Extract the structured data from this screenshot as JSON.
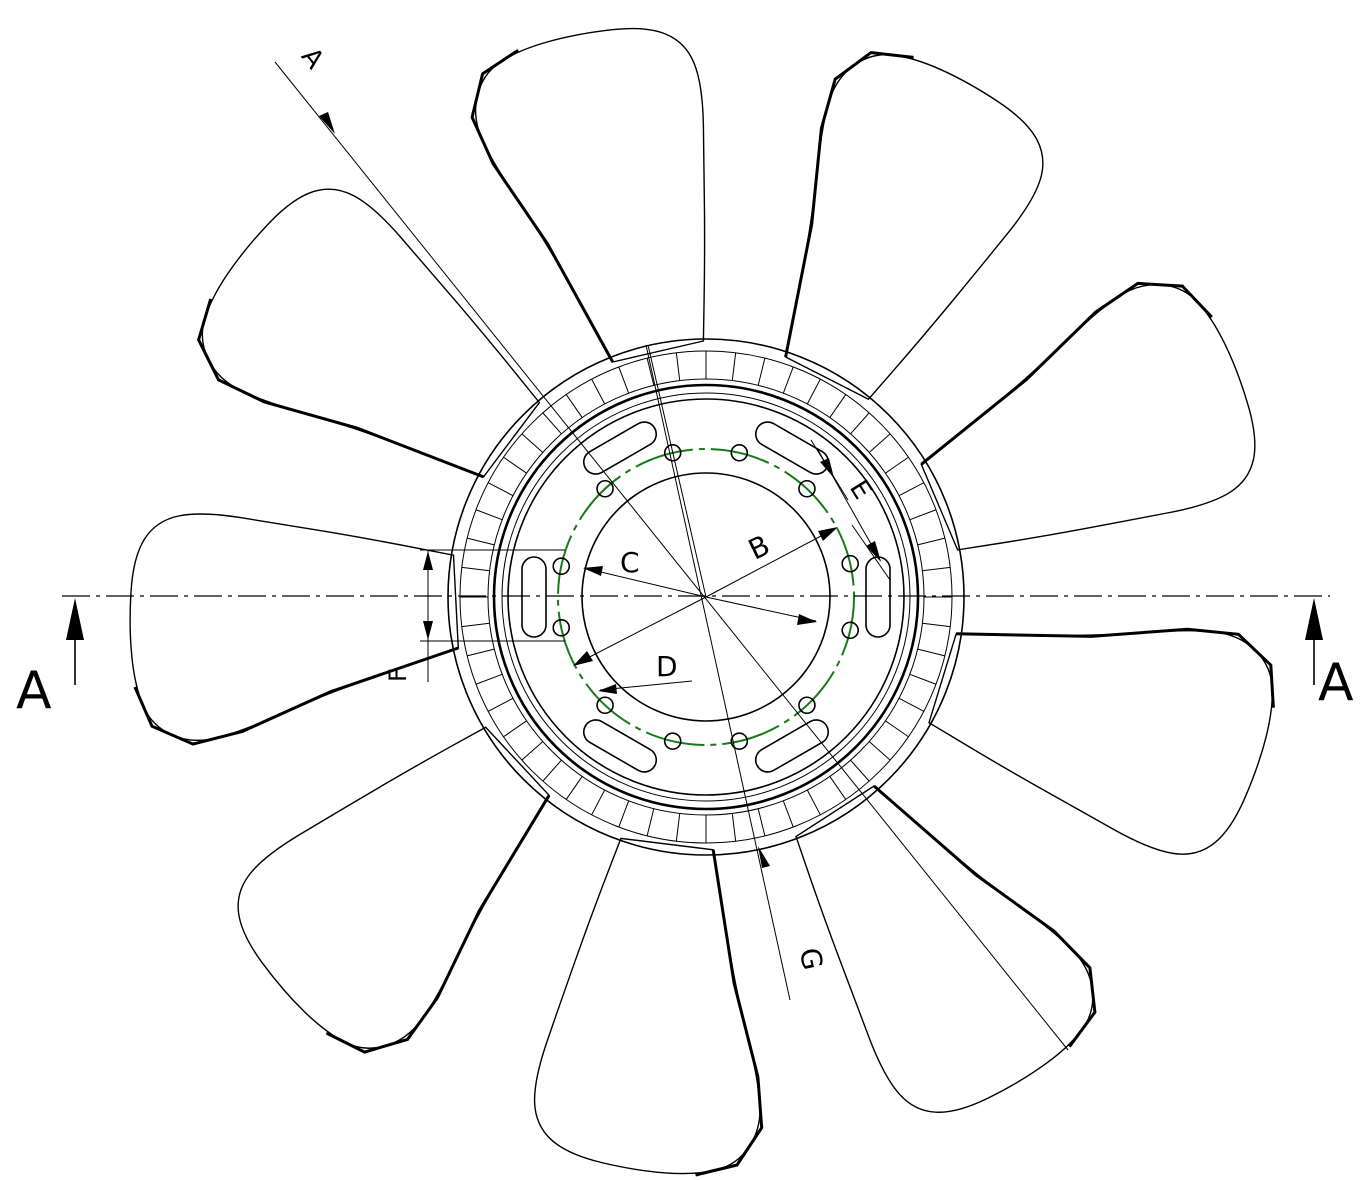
{
  "drawing": {
    "section_label_left": "A",
    "section_label_right": "A",
    "section_label_top": "A",
    "dimension_labels": {
      "b": "B",
      "c": "C",
      "d": "D",
      "e": "E",
      "f": "F",
      "g": "G"
    },
    "blade_count": 9,
    "rib_count": 52,
    "bolt_hole_count": 12,
    "slot_count": 6,
    "colors": {
      "line": "#000000",
      "bolt_circle": "#1a7a1a",
      "background": "#ffffff"
    }
  }
}
